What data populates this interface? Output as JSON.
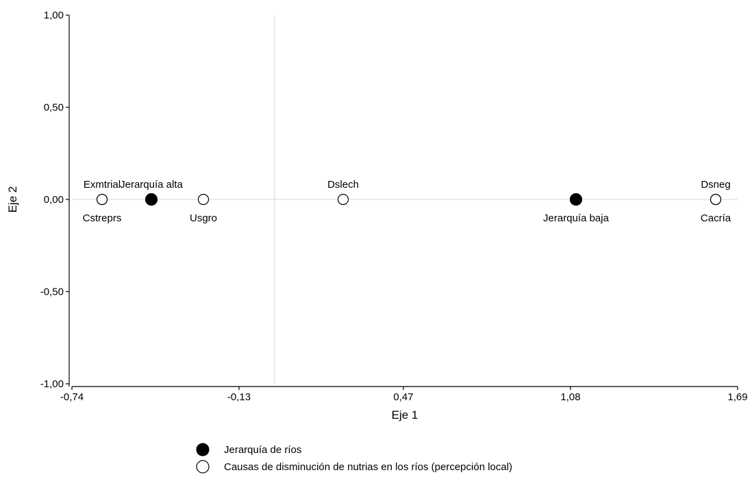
{
  "chart_data": {
    "type": "scatter",
    "title": "",
    "xlabel": "Eje 1",
    "ylabel": "Eje 2",
    "xlim": [
      -0.74,
      1.69
    ],
    "ylim": [
      -1.0,
      1.0
    ],
    "x_ticks": [
      -0.74,
      -0.13,
      0.47,
      1.08,
      1.69
    ],
    "x_tick_labels": [
      "-0,74",
      "-0,13",
      "0,47",
      "1,08",
      "1,69"
    ],
    "y_ticks": [
      -1.0,
      -0.5,
      0.0,
      0.5,
      1.0
    ],
    "y_tick_labels": [
      "-1,00",
      "-0,50",
      "0,00",
      "0,50",
      "1,00"
    ],
    "reference_lines": {
      "x": 0.0,
      "y": 0.0
    },
    "grid": false,
    "legend_position": "bottom",
    "series": [
      {
        "name": "Jerarquía de ríos",
        "marker": "filled-circle",
        "color": "#000000",
        "points": [
          {
            "label": "Jerarquía alta",
            "x": -0.45,
            "y": 0.0,
            "label_pos": "above"
          },
          {
            "label": "Jerarquía baja",
            "x": 1.1,
            "y": 0.0,
            "label_pos": "below"
          }
        ]
      },
      {
        "name": "Causas de disminución de nutrias en los ríos (percepción local)",
        "marker": "open-circle",
        "color": "#000000",
        "points": [
          {
            "label": "Exmtrial",
            "x": -0.63,
            "y": 0.0,
            "label_pos": "above"
          },
          {
            "label": "Cstreprs",
            "x": -0.63,
            "y": 0.0,
            "label_pos": "below"
          },
          {
            "label": "Usgro",
            "x": -0.26,
            "y": 0.0,
            "label_pos": "below"
          },
          {
            "label": "Dslech",
            "x": 0.25,
            "y": 0.0,
            "label_pos": "above"
          },
          {
            "label": "Dsneg",
            "x": 1.61,
            "y": 0.0,
            "label_pos": "above"
          },
          {
            "label": "Cacría",
            "x": 1.61,
            "y": 0.0,
            "label_pos": "below"
          }
        ]
      }
    ]
  }
}
